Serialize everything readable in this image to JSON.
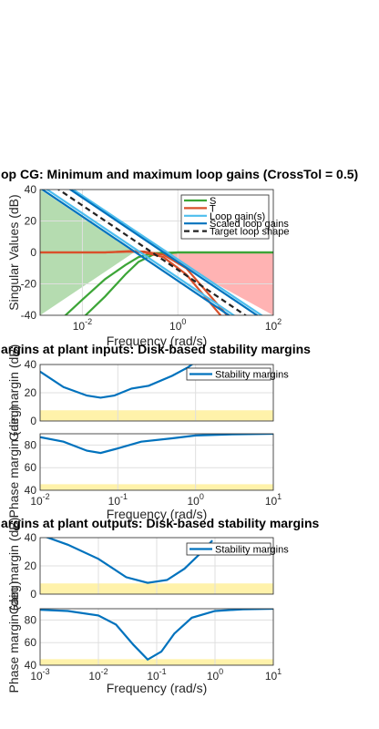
{
  "chart_data": [
    {
      "type": "line",
      "title": "op CG: Minimum and maximum loop gains (CrossTol = 0.5)",
      "xlabel": "Frequency (rad/s)",
      "ylabel": "Singular Values (dB)",
      "xscale": "log",
      "xlim": [
        0.0013,
        100
      ],
      "ylim": [
        -40,
        40
      ],
      "xticks": [
        0.01,
        1,
        100
      ],
      "xtick_labels": [
        "10^-2",
        "10^0",
        "10^2"
      ],
      "yticks": [
        -40,
        -20,
        0,
        20,
        40
      ],
      "ytick_labels": [
        "-40",
        "-20",
        "0",
        "20",
        "40"
      ],
      "grid": true,
      "legend": "top-right",
      "shaded_regions": [
        {
          "color": "#b5dcb0",
          "x": [
            0.0013,
            0.0013,
            0.12,
            0.0013
          ],
          "y": [
            40,
            -40,
            0,
            40
          ]
        },
        {
          "color": "#ffb3b3",
          "x": [
            0.4,
            100,
            100,
            0.4
          ],
          "y": [
            0,
            0,
            -40,
            0
          ]
        }
      ],
      "series": [
        {
          "name": "S",
          "color": "#3ca537",
          "dash": "",
          "x": [
            0.0013,
            0.01,
            0.03,
            0.08,
            0.15,
            0.3,
            1,
            100
          ],
          "y": [
            -55,
            -30,
            -17,
            -8,
            -3,
            -0.5,
            0,
            0
          ]
        },
        {
          "name": "",
          "color": "#3ca537",
          "dash": "",
          "x": [
            0.0013,
            0.01,
            0.03,
            0.08,
            0.15,
            0.3,
            1,
            100
          ],
          "y": [
            -68,
            -42,
            -28,
            -14,
            -6,
            -1.5,
            0,
            0
          ]
        },
        {
          "name": "T",
          "color": "#d9502a",
          "dash": "",
          "x": [
            0.0013,
            0.03,
            0.1,
            0.2,
            0.5,
            1.5,
            100
          ],
          "y": [
            0,
            0,
            0.5,
            0,
            -3,
            -14,
            -80
          ]
        },
        {
          "name": "",
          "color": "#d9502a",
          "dash": "",
          "x": [
            0.0013,
            0.03,
            0.1,
            0.2,
            0.5,
            1.5,
            100
          ],
          "y": [
            0,
            0,
            0.8,
            0.5,
            -1.5,
            -10,
            -74
          ]
        },
        {
          "name": "Loop gain(s)",
          "color": "#4dbeee",
          "dash": "",
          "x": [
            0.0013,
            100
          ],
          "y": [
            43,
            -57
          ]
        },
        {
          "name": "",
          "color": "#4dbeee",
          "dash": "",
          "x": [
            0.0013,
            100
          ],
          "y": [
            54,
            -45
          ]
        },
        {
          "name": "Scaled loop gains",
          "color": "#0072bd",
          "dash": "",
          "x": [
            0.0013,
            100
          ],
          "y": [
            41,
            -59
          ]
        },
        {
          "name": "",
          "color": "#0072bd",
          "dash": "",
          "x": [
            0.0013,
            100
          ],
          "y": [
            53,
            -47
          ]
        },
        {
          "name": "Target loop shape",
          "color": "#222222",
          "dash": "6,4",
          "x": [
            0.0013,
            100
          ],
          "y": [
            48,
            -52
          ]
        }
      ]
    },
    {
      "type": "line",
      "title": "argins at plant inputs: Disk-based stability margins",
      "xlabel": "",
      "ylabel": "Gain margin (dB)",
      "xscale": "log",
      "xlim": [
        0.01,
        10
      ],
      "ylim": [
        0,
        40
      ],
      "xticks": [
        0.01,
        0.1,
        1,
        10
      ],
      "xtick_labels": [],
      "yticks": [
        0,
        20,
        40
      ],
      "ytick_labels": [
        "0",
        "20",
        "40"
      ],
      "grid": true,
      "legend": "top-right",
      "shaded_regions": [
        {
          "color": "#fff2aa",
          "x": [
            0.01,
            10,
            10,
            0.01
          ],
          "y": [
            0,
            0,
            7.6,
            7.6
          ]
        }
      ],
      "series": [
        {
          "name": "Stability margins",
          "color": "#0072bd",
          "dash": "",
          "x": [
            0.01,
            0.02,
            0.04,
            0.06,
            0.09,
            0.15,
            0.25,
            0.5,
            0.8,
            1
          ],
          "y": [
            35,
            24,
            18,
            16.5,
            18,
            23,
            25,
            32,
            38,
            42
          ]
        }
      ]
    },
    {
      "type": "line",
      "title": "",
      "xlabel": "Frequency (rad/s)",
      "ylabel": "Phase margin (deg)",
      "xscale": "log",
      "xlim": [
        0.01,
        10
      ],
      "ylim": [
        40,
        90
      ],
      "xticks": [
        0.01,
        0.1,
        1,
        10
      ],
      "xtick_labels": [
        "10^-2",
        "10^-1",
        "10^0",
        "10^1"
      ],
      "yticks": [
        40,
        60,
        80
      ],
      "ytick_labels": [
        "40",
        "60",
        "80"
      ],
      "grid": true,
      "legend": "none",
      "shaded_regions": [
        {
          "color": "#fff2aa",
          "x": [
            0.01,
            10,
            10,
            0.01
          ],
          "y": [
            40,
            40,
            45.3,
            45.3
          ]
        }
      ],
      "series": [
        {
          "name": "",
          "color": "#0072bd",
          "dash": "",
          "x": [
            0.01,
            0.02,
            0.04,
            0.06,
            0.1,
            0.2,
            0.5,
            1,
            3,
            10
          ],
          "y": [
            87,
            83,
            75,
            73,
            77,
            83,
            86,
            88.5,
            89.5,
            90
          ]
        }
      ]
    },
    {
      "type": "line",
      "title": "argins at plant outputs: Disk-based stability margins",
      "xlabel": "",
      "ylabel": "Gain margin (dB)",
      "xscale": "log",
      "xlim": [
        0.001,
        10
      ],
      "ylim": [
        0,
        40
      ],
      "xticks": [
        0.001,
        0.01,
        0.1,
        1,
        10
      ],
      "xtick_labels": [],
      "yticks": [
        0,
        20,
        40
      ],
      "ytick_labels": [
        "0",
        "20",
        "40"
      ],
      "grid": true,
      "legend": "top-right",
      "shaded_regions": [
        {
          "color": "#fff2aa",
          "x": [
            0.001,
            10,
            10,
            0.001
          ],
          "y": [
            0,
            0,
            7.6,
            7.6
          ]
        }
      ],
      "series": [
        {
          "name": "Stability margins",
          "color": "#0072bd",
          "dash": "",
          "x": [
            0.001,
            0.003,
            0.01,
            0.03,
            0.07,
            0.15,
            0.3,
            0.6,
            0.9
          ],
          "y": [
            42,
            35,
            25,
            12,
            8,
            10,
            18,
            30,
            38
          ]
        }
      ]
    },
    {
      "type": "line",
      "title": "",
      "xlabel": "Frequency (rad/s)",
      "ylabel": "Phase margin (deg)",
      "xscale": "log",
      "xlim": [
        0.001,
        10
      ],
      "ylim": [
        40,
        90
      ],
      "xticks": [
        0.001,
        0.01,
        0.1,
        1,
        10
      ],
      "xtick_labels": [
        "10^-3",
        "10^-2",
        "10^-1",
        "10^0",
        "10^1"
      ],
      "yticks": [
        40,
        60,
        80
      ],
      "ytick_labels": [
        "40",
        "60",
        "80"
      ],
      "grid": true,
      "legend": "none",
      "shaded_regions": [
        {
          "color": "#fff2aa",
          "x": [
            0.001,
            10,
            10,
            0.001
          ],
          "y": [
            40,
            40,
            45.3,
            45.3
          ]
        }
      ],
      "series": [
        {
          "name": "",
          "color": "#0072bd",
          "dash": "",
          "x": [
            0.001,
            0.003,
            0.01,
            0.02,
            0.04,
            0.07,
            0.12,
            0.2,
            0.4,
            1,
            3,
            10
          ],
          "y": [
            89,
            88,
            84,
            76,
            58,
            45,
            52,
            68,
            82,
            88,
            89.5,
            90
          ]
        }
      ]
    }
  ]
}
